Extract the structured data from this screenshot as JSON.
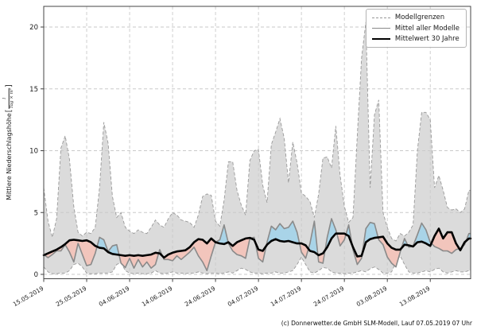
{
  "figure": {
    "ylabel": {
      "text": "Mittlere Niederschlagshöhe",
      "bracket_open": "[",
      "frac_num": "l",
      "frac_den": "Tag × m²",
      "bracket_close": "]"
    },
    "caption": "(c) Donnerwetter.de GmbH SLM-Modell, Lauf 07.05.2019 07 Uhr"
  },
  "legend": {
    "items": [
      {
        "label": "Modellgrenzen",
        "style": "dashed-gray"
      },
      {
        "label": "Mittel aller Modelle",
        "style": "solid-gray"
      },
      {
        "label": "Mittelwert 30 Jahre",
        "style": "solid-black"
      }
    ]
  },
  "chart_data": {
    "type": "line",
    "x_unit": "days since 15.05.2019, one value per day",
    "xlim": [
      0,
      99.4
    ],
    "ylim": [
      -0.37,
      21.7
    ],
    "grid": true,
    "legend_position": "upper right",
    "x_ticks": [
      {
        "day": 0,
        "label": "15.05.2019"
      },
      {
        "day": 10,
        "label": "25.05.2019"
      },
      {
        "day": 20,
        "label": "04.06.2019"
      },
      {
        "day": 30,
        "label": "14.06.2019"
      },
      {
        "day": 40,
        "label": "24.06.2019"
      },
      {
        "day": 50,
        "label": "04.07.2019"
      },
      {
        "day": 60,
        "label": "14.07.2019"
      },
      {
        "day": 70,
        "label": "24.07.2019"
      },
      {
        "day": 80,
        "label": "03.08.2019"
      },
      {
        "day": 90,
        "label": "13.08.2019"
      }
    ],
    "y_ticks": [
      {
        "v": 0,
        "label": "0"
      },
      {
        "v": 5,
        "label": "5"
      },
      {
        "v": 10,
        "label": "10"
      },
      {
        "v": 15,
        "label": "15"
      },
      {
        "v": 20,
        "label": "20"
      }
    ],
    "colors": {
      "envelope": "#dbdbdb",
      "envelope_edge": "#999999",
      "model_mean": "#8a8a8a",
      "mean30": "#000000",
      "above_fill": "#a9d4e8",
      "below_fill": "#f2c5bc",
      "grid": "#cacaca",
      "frame": "#444444",
      "tick": "#444444"
    },
    "series": [
      {
        "name": "Modellgrenzen (Maximum)",
        "values": [
          7.0,
          4.3,
          3.0,
          4.5,
          10.2,
          11.2,
          9.3,
          5.5,
          3.4,
          3.1,
          3.4,
          3.3,
          3.8,
          7.0,
          12.3,
          10.6,
          6.3,
          4.6,
          5.0,
          3.8,
          3.5,
          3.3,
          3.6,
          3.4,
          3.3,
          3.8,
          4.4,
          4.0,
          3.8,
          4.5,
          5.0,
          4.8,
          4.4,
          4.3,
          4.2,
          3.8,
          4.8,
          6.3,
          6.5,
          6.4,
          4.3,
          3.9,
          6.0,
          9.1,
          9.1,
          6.8,
          5.6,
          4.8,
          9.2,
          10.0,
          10.1,
          7.2,
          5.8,
          10.5,
          11.5,
          12.6,
          11.0,
          7.4,
          10.7,
          9.0,
          6.6,
          6.3,
          5.9,
          4.6,
          6.5,
          9.4,
          9.5,
          8.6,
          12.0,
          8.0,
          5.5,
          4.2,
          4.6,
          11.2,
          17.5,
          20.4,
          7.0,
          12.9,
          14.1,
          5.0,
          3.8,
          2.9,
          2.7,
          3.3,
          3.1,
          3.4,
          4.0,
          10.0,
          13.1,
          13.1,
          12.5,
          7.0,
          8.0,
          6.8,
          5.4,
          5.2,
          5.3,
          5.0,
          5.3,
          6.8
        ]
      },
      {
        "name": "Modellgrenzen (Minimum)",
        "values": [
          0.6,
          0.2,
          0.05,
          0.05,
          0.1,
          0.1,
          0.3,
          0.8,
          0.9,
          0.6,
          0.1,
          0.05,
          0.05,
          0.1,
          0.1,
          0.1,
          0.2,
          0.8,
          0.95,
          0.3,
          0.1,
          0.05,
          0.1,
          0.05,
          0.05,
          0.1,
          0.3,
          0.1,
          0.05,
          0.1,
          0.2,
          0.1,
          0.1,
          0.05,
          0.1,
          0.1,
          0.2,
          0.1,
          0.05,
          0.1,
          0.1,
          0.05,
          0.1,
          0.2,
          0.1,
          0.3,
          0.5,
          0.4,
          0.2,
          0.1,
          0.1,
          0.05,
          0.1,
          0.1,
          0.2,
          0.1,
          0.1,
          0.2,
          0.3,
          0.8,
          1.4,
          0.8,
          0.2,
          0.1,
          0.3,
          0.55,
          0.5,
          0.2,
          0.1,
          0.1,
          0.05,
          0.1,
          0.1,
          0.2,
          0.3,
          0.2,
          0.45,
          0.6,
          0.4,
          0.1,
          0.1,
          0.2,
          1.0,
          1.5,
          0.8,
          0.2,
          0.1,
          0.1,
          0.2,
          0.3,
          0.2,
          0.4,
          0.5,
          0.2,
          0.1,
          0.2,
          0.3,
          0.2,
          0.2,
          0.3
        ]
      },
      {
        "name": "Mittel aller Modelle",
        "values": [
          1.6,
          1.35,
          1.6,
          1.9,
          1.9,
          2.4,
          1.8,
          1.0,
          2.5,
          1.6,
          0.7,
          0.8,
          1.7,
          3.0,
          2.8,
          1.85,
          2.3,
          2.4,
          0.9,
          0.55,
          1.3,
          0.5,
          1.2,
          0.6,
          1.0,
          0.5,
          0.8,
          2.0,
          1.2,
          1.2,
          1.1,
          1.5,
          1.2,
          1.5,
          1.8,
          2.2,
          1.5,
          1.0,
          0.3,
          1.5,
          2.6,
          2.8,
          4.0,
          2.5,
          1.9,
          1.6,
          1.5,
          1.3,
          2.9,
          3.0,
          1.3,
          1.0,
          2.6,
          3.9,
          3.6,
          4.1,
          3.7,
          3.8,
          4.3,
          3.4,
          1.8,
          1.3,
          2.5,
          4.3,
          1.0,
          0.9,
          3.0,
          4.5,
          3.6,
          2.3,
          2.8,
          4.0,
          2.0,
          0.8,
          1.3,
          3.7,
          4.2,
          4.1,
          2.8,
          2.4,
          1.4,
          0.9,
          0.6,
          1.8,
          2.9,
          2.2,
          2.3,
          3.2,
          4.15,
          3.6,
          2.6,
          2.25,
          2.1,
          1.9,
          1.9,
          1.7,
          2.0,
          2.1,
          2.4,
          3.3
        ]
      },
      {
        "name": "Mittelwert 30 Jahre",
        "values": [
          1.55,
          1.7,
          1.85,
          2.0,
          2.2,
          2.45,
          2.75,
          2.8,
          2.75,
          2.7,
          2.75,
          2.6,
          2.3,
          2.15,
          2.1,
          1.8,
          1.65,
          1.6,
          1.55,
          1.5,
          1.55,
          1.5,
          1.55,
          1.5,
          1.55,
          1.6,
          1.75,
          1.7,
          1.35,
          1.6,
          1.75,
          1.85,
          1.9,
          1.95,
          2.2,
          2.6,
          2.85,
          2.8,
          2.5,
          2.9,
          2.6,
          2.5,
          2.45,
          2.6,
          2.3,
          2.6,
          2.75,
          2.9,
          2.95,
          2.8,
          2.0,
          1.9,
          2.4,
          2.7,
          2.85,
          2.7,
          2.65,
          2.7,
          2.6,
          2.5,
          2.5,
          2.35,
          1.9,
          1.8,
          1.55,
          1.7,
          2.2,
          2.9,
          3.3,
          3.3,
          3.3,
          3.1,
          2.2,
          1.45,
          1.5,
          2.6,
          2.85,
          2.95,
          3.0,
          3.05,
          2.5,
          2.15,
          2.0,
          2.0,
          2.4,
          2.35,
          2.25,
          2.6,
          2.65,
          2.5,
          2.3,
          3.1,
          3.7,
          2.9,
          3.4,
          3.4,
          2.5,
          1.95,
          2.6,
          2.9
        ]
      }
    ]
  }
}
